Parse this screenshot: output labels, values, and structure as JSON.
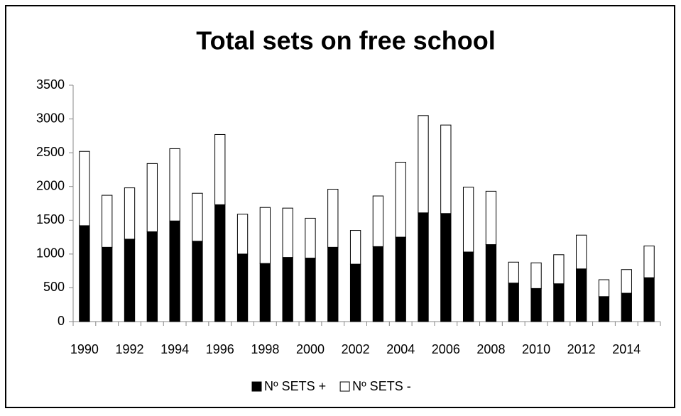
{
  "chart_data": {
    "type": "stacked_bar",
    "title": "Total sets on free school",
    "categories": [
      "1990",
      null,
      "1992",
      null,
      "1994",
      null,
      "1996",
      null,
      "1998",
      null,
      "2000",
      null,
      "2002",
      null,
      "2004",
      null,
      "2006",
      null,
      "2008",
      null,
      "2010",
      null,
      "2012",
      null,
      "2014",
      null
    ],
    "series": [
      {
        "name": "Nº SETS +",
        "color": "#000000",
        "values": [
          1420,
          1100,
          1220,
          1330,
          1490,
          1190,
          1730,
          1000,
          860,
          950,
          940,
          1100,
          850,
          1110,
          1250,
          1610,
          1600,
          1030,
          1140,
          570,
          490,
          560,
          780,
          370,
          420,
          650
        ]
      },
      {
        "name": "Nº SETS -",
        "color": "#ffffff",
        "values": [
          1100,
          770,
          760,
          1010,
          1070,
          710,
          1040,
          590,
          830,
          730,
          590,
          860,
          500,
          750,
          1110,
          1440,
          1310,
          960,
          790,
          310,
          380,
          430,
          500,
          250,
          350,
          470
        ]
      }
    ],
    "ylim": [
      0,
      3500
    ],
    "yticks": [
      0,
      500,
      1000,
      1500,
      2000,
      2500,
      3000,
      3500
    ],
    "grid": false,
    "legend": "bottom"
  }
}
